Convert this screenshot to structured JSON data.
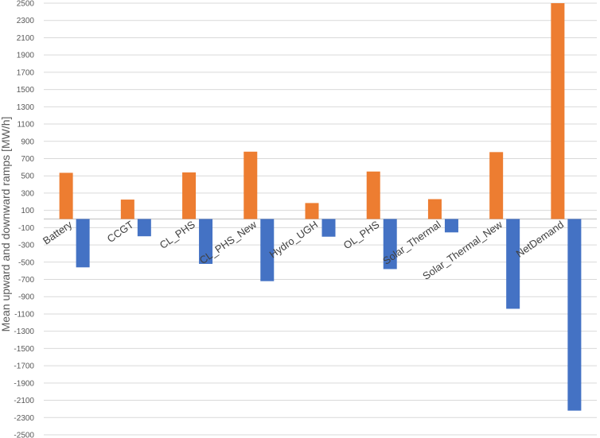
{
  "chart_data": {
    "type": "bar",
    "ylabel": "Mean upward and downward ramps [MW/h]",
    "ylim": [
      -2500,
      2500
    ],
    "yticks": [
      2500,
      2300,
      2100,
      1900,
      1700,
      1500,
      1300,
      1100,
      900,
      700,
      500,
      300,
      100,
      -100,
      -300,
      -500,
      -700,
      -900,
      -1100,
      -1300,
      -1500,
      -1700,
      -1900,
      -2100,
      -2300,
      -2500
    ],
    "grid": true,
    "categories": [
      "Battery",
      "CCGT",
      "CL_PHS",
      "CL_PHS_New",
      "Hydro_UGH",
      "OL_PHS",
      "Solar_Thermal",
      "Solar_Thermal_New",
      "NetDemand"
    ],
    "series": [
      {
        "key": "upward",
        "color": "#ed7d31",
        "values": [
          535,
          225,
          540,
          780,
          185,
          550,
          230,
          775,
          2500
        ]
      },
      {
        "key": "downward",
        "color": "#4472c4",
        "values": [
          -560,
          -200,
          -520,
          -720,
          -205,
          -580,
          -155,
          -1040,
          -2220
        ]
      }
    ]
  }
}
